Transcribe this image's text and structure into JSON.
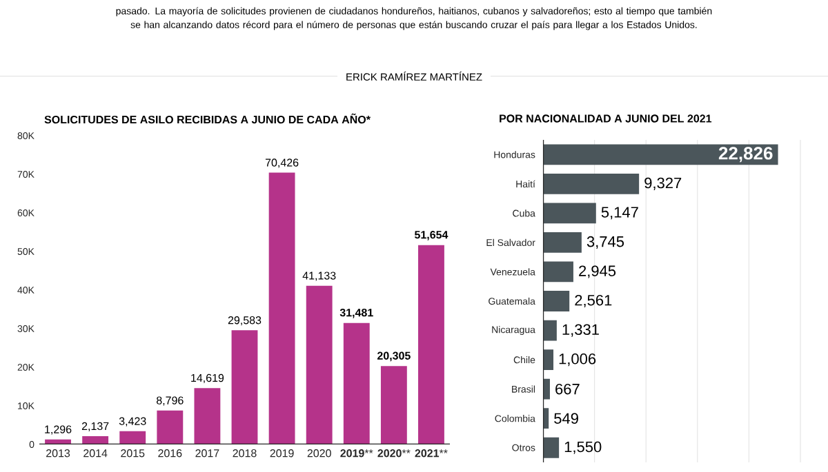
{
  "chart_data": [
    {
      "type": "bar",
      "title": "SOLICITUDES DE ASILO RECIBIDAS A JUNIO DE CADA AÑO*",
      "annotations": [
        "pasado. La mayoría de solicitudes provienen de ciudadanos hondureños, haitianos, cubanos y salvadoreños; esto al tiempo que también se han alcanzando datos récord para el número de personas que están buscando cruzar el país para llegar a los Estados Unidos.",
        "ERICK RAMÍREZ MARTÍNEZ"
      ],
      "categories": [
        "2013",
        "2014",
        "2015",
        "2016",
        "2017",
        "2018",
        "2019",
        "2020",
        "**2019****",
        "**2020****",
        "**2021****"
      ],
      "values": [
        1296,
        2137,
        3423,
        8796,
        14619,
        29583,
        70426,
        41133,
        31481,
        20305,
        51654
      ],
      "value_labels": [
        "1,296",
        "2,137",
        "3,423",
        "8,796",
        "14,619",
        "29,583",
        "70,426",
        "41,133",
        "**31,481**",
        "**20,305**",
        "**51,654**"
      ],
      "color": "#b5338a",
      "ylim": [
        0,
        80000
      ],
      "yticks": [
        0,
        {
          "value": 10000,
          "label": "10K"
        },
        {
          "value": 20000,
          "label": "20K"
        },
        {
          "value": 30000,
          "label": "30K"
        },
        {
          "value": 40000,
          "label": "40K"
        },
        {
          "value": 50000,
          "label": "50K"
        },
        {
          "value": 60000,
          "label": "60K"
        },
        {
          "value": 70000,
          "label": "70K"
        },
        {
          "value": 80000,
          "label": "80K"
        }
      ]
    },
    {
      "type": "bar",
      "orientation": "horizontal",
      "title": "POR NACIONALIDAD A JUNIO DEL 2021",
      "categories": [
        "Honduras",
        "Haití",
        "Cuba",
        "El Salvador",
        "Venezuela",
        "Guatemala",
        "Nicaragua",
        "Chile",
        "Brasil",
        "Colombia",
        "Otros"
      ],
      "values": [
        22826,
        9327,
        5147,
        3745,
        2945,
        2561,
        1331,
        1006,
        667,
        549,
        1550
      ],
      "value_labels": [
        "**22,826**",
        "9,327",
        "5,147",
        "3,745",
        "2,945",
        "2,561",
        "1,331",
        "1,006",
        "667",
        "549",
        "1,550"
      ],
      "color": "#4b565b",
      "xlim": [
        0,
        25000
      ],
      "xticks": [
        {
          "value": 0,
          "label": null
        },
        {
          "value": 5000,
          "label": null
        },
        {
          "value": 10000,
          "label": null
        },
        {
          "value": 15000,
          "label": null
        },
        {
          "value": 20000,
          "label": null
        },
        {
          "value": 25000,
          "label": null
        }
      ],
      "grid": "x",
      "tick_labels": "y"
    }
  ]
}
